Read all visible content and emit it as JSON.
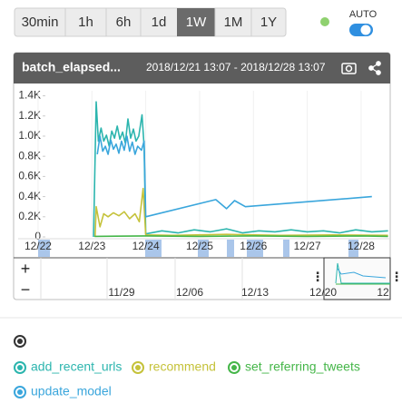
{
  "toolbar": {
    "ranges": [
      "30min",
      "1h",
      "6h",
      "1d",
      "1W",
      "1M",
      "1Y"
    ],
    "active": "1W",
    "auto_label": "AUTO"
  },
  "chart_data": {
    "type": "line",
    "title": "batch_elapsed...",
    "subtitle": "2018/12/21 13:07 - 2018/12/28 13:07",
    "xlim": [
      21.63,
      28.54
    ],
    "xticks": [
      {
        "value": 22,
        "label": "12/22"
      },
      {
        "value": 23,
        "label": "12/23"
      },
      {
        "value": 24,
        "label": "12/24"
      },
      {
        "value": 25,
        "label": "12/25"
      },
      {
        "value": 26,
        "label": "12/26"
      },
      {
        "value": 27,
        "label": "12/27"
      },
      {
        "value": 28,
        "label": "12/28"
      }
    ],
    "ylim": [
      0,
      1450
    ],
    "yticks": [
      0,
      {
        "value": 200,
        "label": "0.2K"
      },
      {
        "value": 400,
        "label": "0.4K"
      },
      {
        "value": 600,
        "label": "0.6K"
      },
      {
        "value": 800,
        "label": "0.8K"
      },
      {
        "value": 1000,
        "label": "1.0K"
      },
      {
        "value": 1200,
        "label": "1.2K"
      },
      {
        "value": 1400,
        "label": "1.4K"
      }
    ],
    "grid": true,
    "series": [
      {
        "name": "add_recent_urls",
        "color": "#2cb5ae",
        "x": [
          23.03,
          23.08,
          23.12,
          23.17,
          23.22,
          23.27,
          23.32,
          23.37,
          23.42,
          23.47,
          23.52,
          23.57,
          23.62,
          23.67,
          23.72,
          23.77,
          23.82,
          23.87,
          23.93,
          23.97,
          24.0,
          24.3,
          24.6,
          24.9,
          25.2,
          25.5,
          25.8,
          26.1,
          26.4,
          26.7,
          27.0,
          27.3,
          27.6,
          27.9,
          28.2,
          28.5
        ],
        "values": [
          0,
          1340,
          950,
          1080,
          950,
          1010,
          900,
          1050,
          980,
          1100,
          970,
          1040,
          930,
          1170,
          980,
          1070,
          950,
          1000,
          1210,
          900,
          30,
          60,
          40,
          70,
          50,
          80,
          40,
          60,
          50,
          70,
          50,
          60,
          40,
          70,
          50,
          60
        ]
      },
      {
        "name": "recommend",
        "color": "#c5c23a",
        "x": [
          23.06,
          23.08,
          23.15,
          23.22,
          23.3,
          23.4,
          23.5,
          23.6,
          23.7,
          23.8,
          23.88,
          23.95,
          24.0,
          24.5,
          25.5,
          26.5,
          27.5,
          28.5
        ],
        "values": [
          0,
          300,
          100,
          230,
          200,
          240,
          210,
          250,
          180,
          230,
          150,
          480,
          20,
          15,
          25,
          15,
          20,
          15
        ]
      },
      {
        "name": "set_referring_tweets",
        "color": "#45b649",
        "x": [
          23.05,
          24.0,
          25.0,
          26.0,
          27.0,
          28.0,
          28.5
        ],
        "values": [
          5,
          10,
          5,
          10,
          5,
          10,
          5
        ]
      },
      {
        "name": "update_model",
        "color": "#3aa6dc",
        "x": [
          23.1,
          23.15,
          23.2,
          23.25,
          23.3,
          23.35,
          23.4,
          23.45,
          23.5,
          23.55,
          23.6,
          23.65,
          23.7,
          23.75,
          23.8,
          23.85,
          23.92,
          23.97,
          24.0,
          25.3,
          25.5,
          25.65,
          25.85,
          28.2
        ],
        "values": [
          820,
          1000,
          850,
          900,
          820,
          960,
          870,
          920,
          830,
          950,
          860,
          1000,
          850,
          940,
          820,
          900,
          860,
          950,
          200,
          370,
          280,
          360,
          300,
          400
        ]
      }
    ]
  },
  "navigator": {
    "zoom_in": "+",
    "zoom_out": "−",
    "dates": [
      "11/29",
      "12/06",
      "12/13",
      "12/20",
      "12"
    ]
  }
}
